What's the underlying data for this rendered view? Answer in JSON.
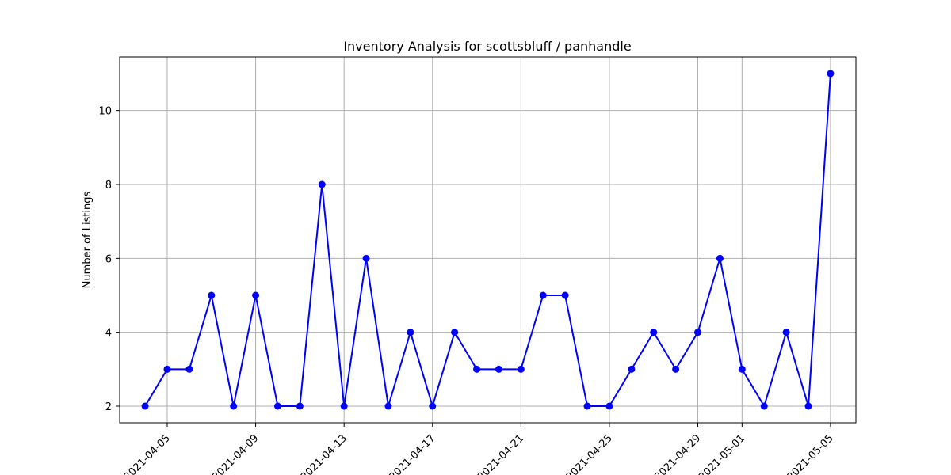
{
  "chart_data": {
    "type": "line",
    "title": "Inventory Analysis for scottsbluff / panhandle",
    "xlabel": "",
    "ylabel": "Number of Listings",
    "x": [
      "2021-04-04",
      "2021-04-05",
      "2021-04-06",
      "2021-04-07",
      "2021-04-08",
      "2021-04-09",
      "2021-04-10",
      "2021-04-11",
      "2021-04-12",
      "2021-04-13",
      "2021-04-14",
      "2021-04-15",
      "2021-04-16",
      "2021-04-17",
      "2021-04-18",
      "2021-04-19",
      "2021-04-20",
      "2021-04-21",
      "2021-04-22",
      "2021-04-23",
      "2021-04-24",
      "2021-04-25",
      "2021-04-26",
      "2021-04-27",
      "2021-04-28",
      "2021-04-29",
      "2021-04-30",
      "2021-05-01",
      "2021-05-02",
      "2021-05-03",
      "2021-05-04",
      "2021-05-05"
    ],
    "series": [
      {
        "values": [
          2,
          3,
          3,
          5,
          2,
          5,
          2,
          2,
          8,
          2,
          6,
          2,
          4,
          2,
          4,
          3,
          3,
          3,
          5,
          5,
          2,
          2,
          3,
          4,
          3,
          4,
          6,
          3,
          2,
          4,
          2,
          11
        ],
        "color": "#0000ff"
      }
    ],
    "xticks": [
      "2021-04-05",
      "2021-04-09",
      "2021-04-13",
      "2021-04-17",
      "2021-04-21",
      "2021-04-25",
      "2021-04-29",
      "2021-05-01",
      "2021-05-05"
    ],
    "yticks": [
      2,
      4,
      6,
      8,
      10
    ],
    "xlim": [
      "2021-04-02T20:24",
      "2021-05-06T03:36"
    ],
    "ylim": [
      1.55,
      11.45
    ],
    "grid": true,
    "marker": "circle"
  }
}
